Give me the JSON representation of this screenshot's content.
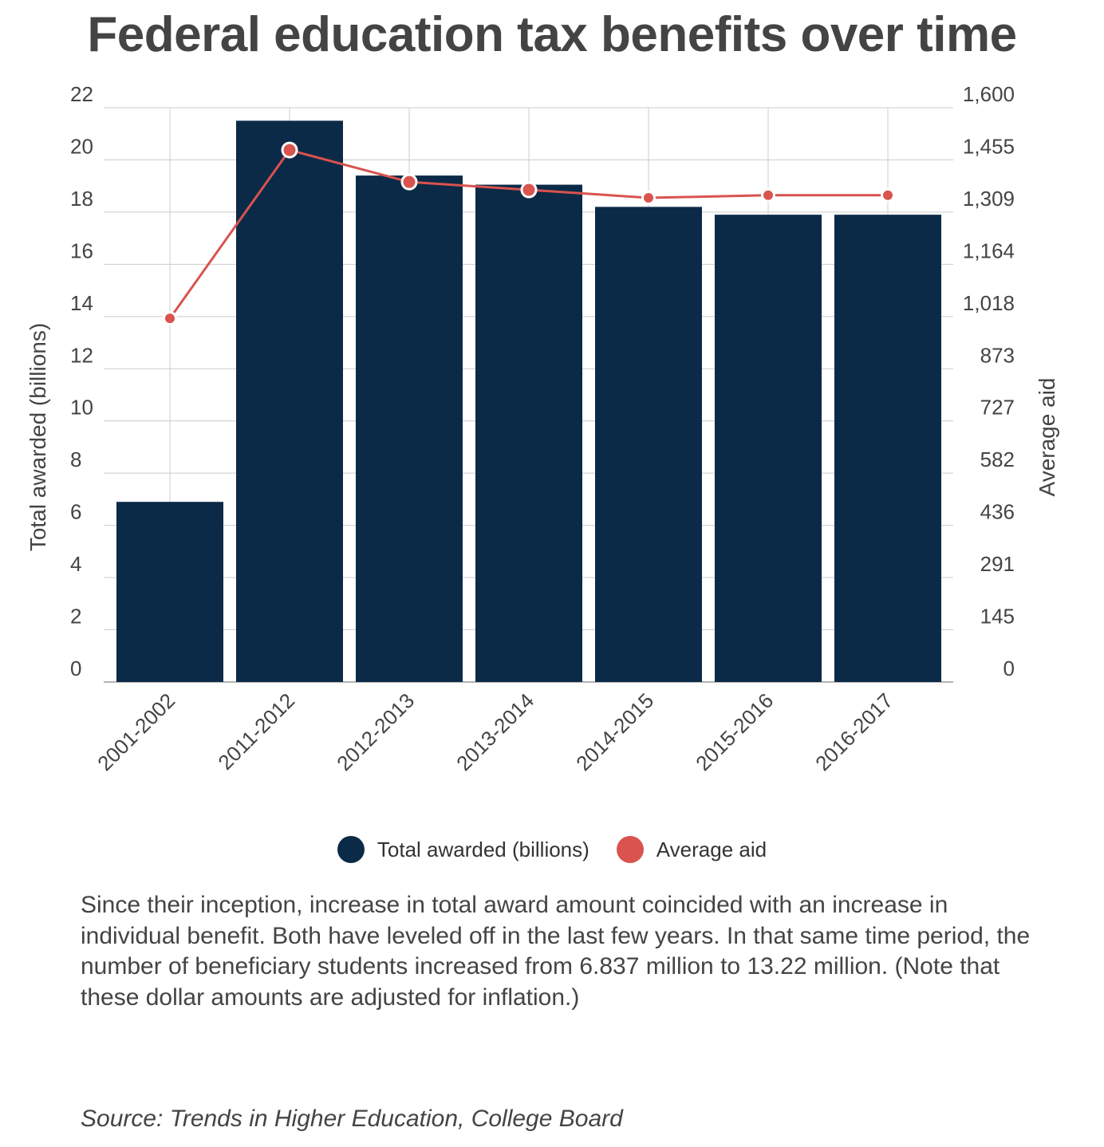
{
  "title": "Federal education tax benefits over time",
  "chart_data": {
    "type": "bar+line",
    "title": "Federal education tax benefits over time",
    "categories": [
      "2001-2002",
      "2011-2012",
      "2012-2013",
      "2013-2014",
      "2014-2015",
      "2015-2016",
      "2016-2017"
    ],
    "series": [
      {
        "name": "Total awarded (billions)",
        "type": "bar",
        "axis": "left",
        "color": "#0b2a47",
        "values": [
          6.9,
          21.5,
          19.4,
          19.05,
          18.2,
          17.9,
          17.9
        ]
      },
      {
        "name": "Average aid",
        "type": "line",
        "axis": "right",
        "color": "#d9534f",
        "values": [
          1013,
          1482,
          1393,
          1371,
          1349,
          1356,
          1356
        ]
      }
    ],
    "ylabel": "Total awarded (billions)",
    "y2label": "Average aid",
    "ylim": [
      0,
      22
    ],
    "y2lim": [
      0,
      1600
    ],
    "yticks": [
      "0",
      "2",
      "4",
      "6",
      "8",
      "10",
      "12",
      "14",
      "16",
      "18",
      "20",
      "22"
    ],
    "y2ticks": [
      "0",
      "145",
      "291",
      "436",
      "582",
      "727",
      "873",
      "1,018",
      "1,164",
      "1,309",
      "1,455",
      "1,600"
    ],
    "grid": true,
    "legend": "bottom-center"
  },
  "caption": "Since their inception, increase in total award amount coincided with an increase in individual benefit. Both have leveled off in the last few years. In that same time period, the number of beneficiary students increased from 6.837 million to 13.22 million. (Note that these dollar amounts are adjusted for inflation.)",
  "source": "Source: Trends in Higher Education, College Board"
}
